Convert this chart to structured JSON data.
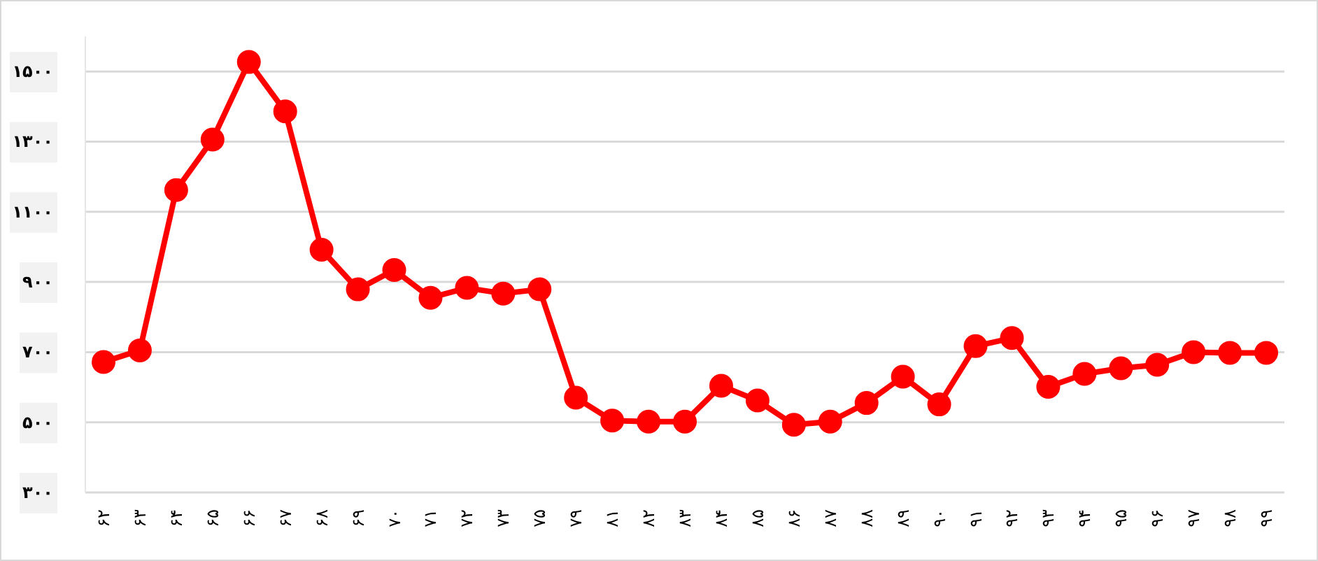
{
  "chart_data": {
    "type": "line",
    "categories": [
      "۶۲",
      "۶۳",
      "۶۴",
      "۶۵",
      "۶۶",
      "۶۷",
      "۶۸",
      "۶۹",
      "۷۰",
      "۷۱",
      "۷۲",
      "۷۳",
      "۷۵",
      "۷۹",
      "۸۱",
      "۸۲",
      "۸۳",
      "۸۴",
      "۸۵",
      "۸۶",
      "۸۷",
      "۸۸",
      "۸۹",
      "۹۰",
      "۹۱",
      "۹۲",
      "۹۳",
      "۹۴",
      "۹۵",
      "۹۶",
      "۹۷",
      "۹۸",
      "۹۹"
    ],
    "series": [
      {
        "color": "#ff0000",
        "values": [
          672,
          705,
          1162,
          1306,
          1527,
          1386,
          992,
          879,
          934,
          855,
          883,
          867,
          879,
          570,
          505,
          502,
          502,
          604,
          562,
          493,
          502,
          555,
          630,
          551,
          717,
          740,
          601,
          638,
          654,
          664,
          700,
          698,
          698
        ]
      }
    ],
    "ylim": [
      300,
      1600
    ],
    "yticks": [
      {
        "value": 300,
        "label": "۳۰۰"
      },
      {
        "value": 500,
        "label": "۵۰۰"
      },
      {
        "value": 700,
        "label": "۷۰۰"
      },
      {
        "value": 900,
        "label": "۹۰۰"
      },
      {
        "value": 1100,
        "label": "۱۱۰۰"
      },
      {
        "value": 1300,
        "label": "۱۳۰۰"
      },
      {
        "value": 1500,
        "label": "۱۵۰۰"
      }
    ],
    "grid": "y",
    "marker": "circle"
  }
}
